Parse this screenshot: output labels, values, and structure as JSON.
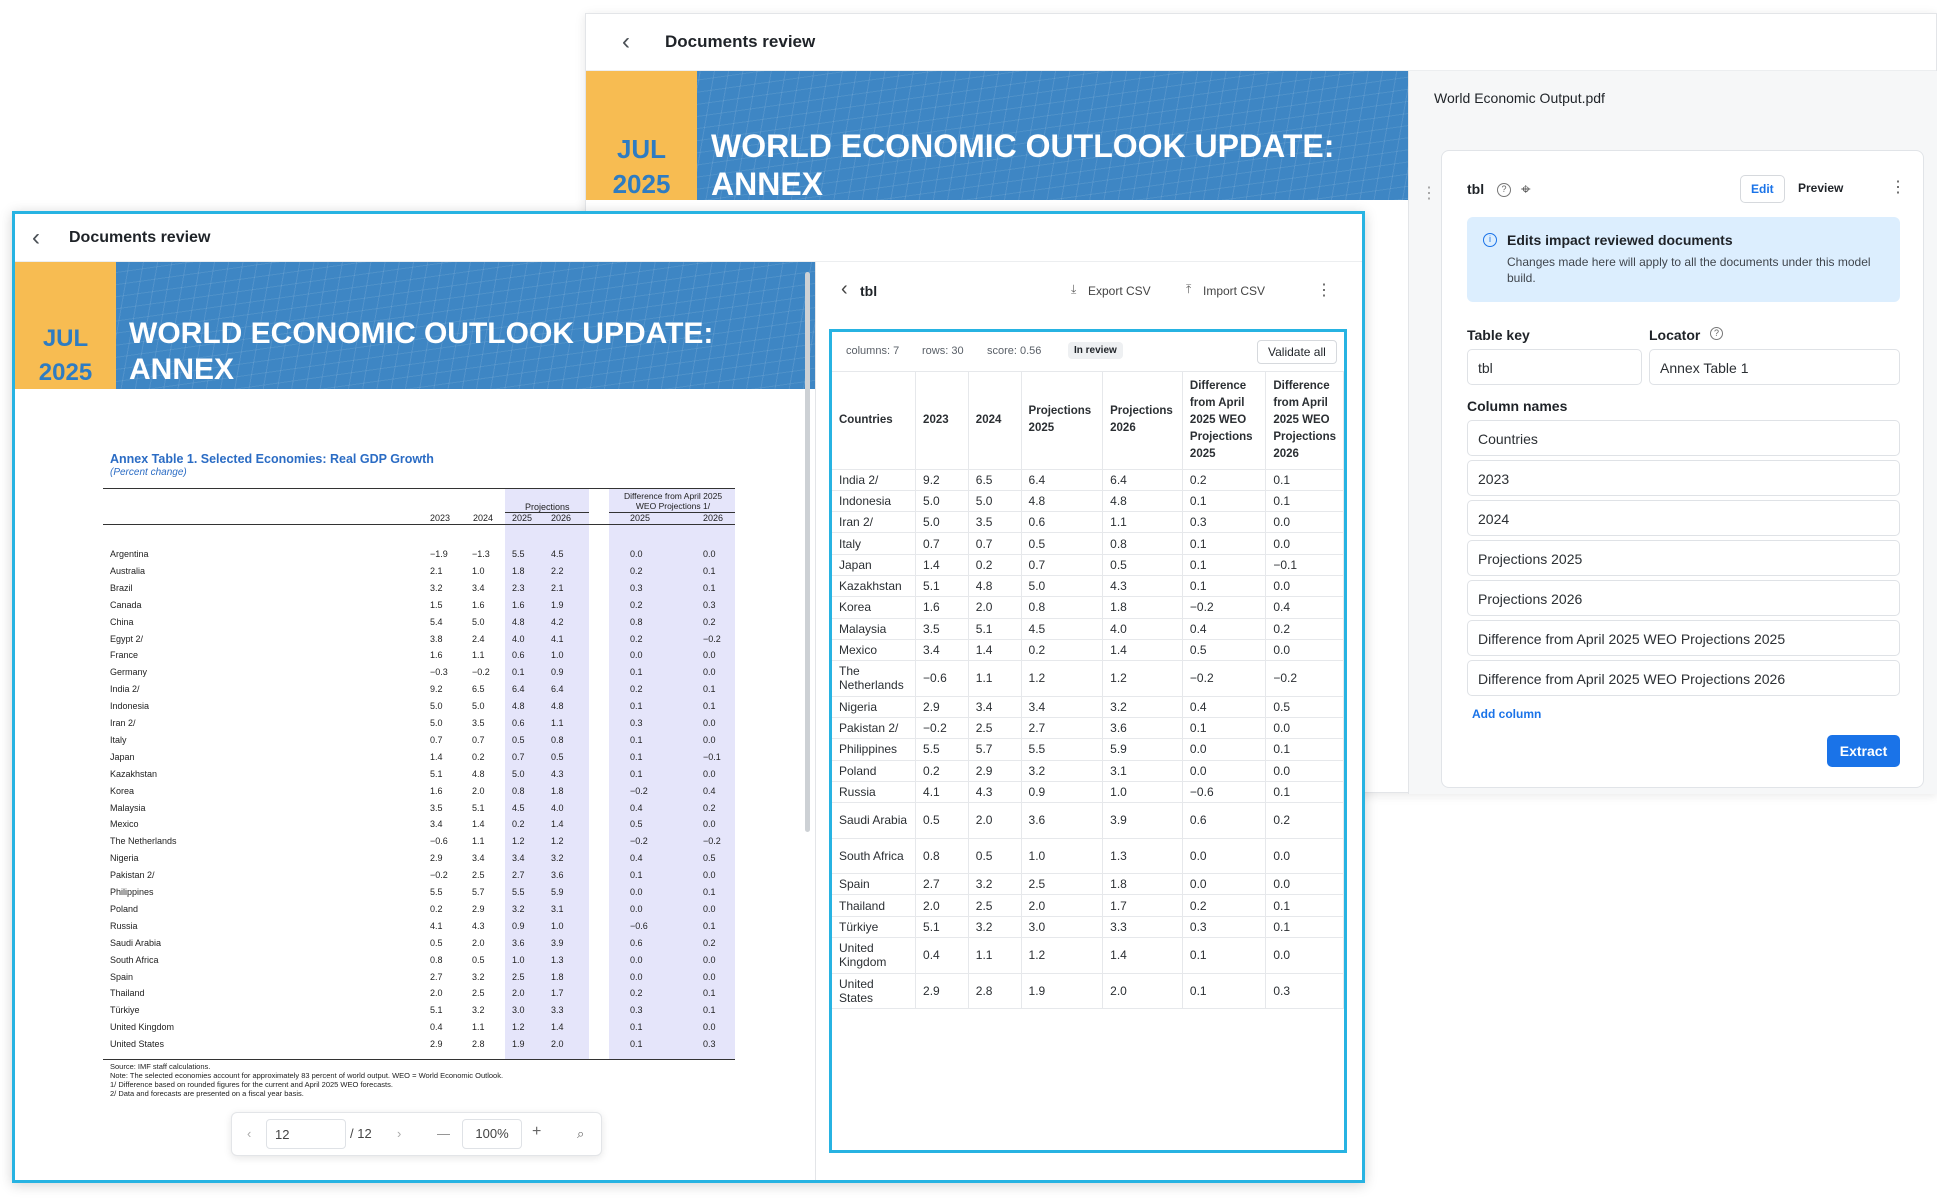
{
  "back_window": {
    "header_title": "Documents review",
    "banner": {
      "month": "JUL",
      "year": "2025",
      "title_line1": "WORLD ECONOMIC OUTLOOK UPDATE:",
      "title_line2": "ANNEX"
    },
    "panel": {
      "file_name": "World Economic Output.pdf",
      "table_name": "tbl",
      "tabs": [
        "Edit",
        "Preview"
      ],
      "notice_title": "Edits impact reviewed documents",
      "notice_text": "Changes made here will apply to all the documents under this model build.",
      "table_key_label": "Table key",
      "table_key_value": "tbl",
      "locator_label": "Locator",
      "locator_value": "Annex Table 1",
      "column_names_label": "Column names",
      "column_names": [
        "Countries",
        "2023",
        "2024",
        "Projections 2025",
        "Projections 2026",
        "Difference from April 2025 WEO Projections 2025",
        "Difference from April 2025 WEO Projections 2026"
      ],
      "add_column": "Add column",
      "extract_button": "Extract"
    }
  },
  "front_window": {
    "header_title": "Documents review",
    "banner": {
      "month": "JUL",
      "year": "2025",
      "title_line1": "WORLD ECONOMIC OUTLOOK UPDATE:",
      "title_line2": "ANNEX"
    },
    "pdf": {
      "table_title": "Annex Table 1. Selected Economies: Real GDP Growth",
      "table_subtitle": "(Percent change)",
      "group_projections": "Projections",
      "group_difference": "Difference from April 2025 WEO Projections 1/",
      "col_headers": [
        "2023",
        "2024",
        "2025",
        "2026",
        "2025",
        "2026"
      ],
      "rows": [
        [
          "Argentina",
          "−1.9",
          "−1.3",
          "5.5",
          "4.5",
          "0.0",
          "0.0"
        ],
        [
          "Australia",
          "2.1",
          "1.0",
          "1.8",
          "2.2",
          "0.2",
          "0.1"
        ],
        [
          "Brazil",
          "3.2",
          "3.4",
          "2.3",
          "2.1",
          "0.3",
          "0.1"
        ],
        [
          "Canada",
          "1.5",
          "1.6",
          "1.6",
          "1.9",
          "0.2",
          "0.3"
        ],
        [
          "China",
          "5.4",
          "5.0",
          "4.8",
          "4.2",
          "0.8",
          "0.2"
        ],
        [
          "Egypt 2/",
          "3.8",
          "2.4",
          "4.0",
          "4.1",
          "0.2",
          "−0.2"
        ],
        [
          "France",
          "1.6",
          "1.1",
          "0.6",
          "1.0",
          "0.0",
          "0.0"
        ],
        [
          "Germany",
          "−0.3",
          "−0.2",
          "0.1",
          "0.9",
          "0.1",
          "0.0"
        ],
        [
          "India 2/",
          "9.2",
          "6.5",
          "6.4",
          "6.4",
          "0.2",
          "0.1"
        ],
        [
          "Indonesia",
          "5.0",
          "5.0",
          "4.8",
          "4.8",
          "0.1",
          "0.1"
        ],
        [
          "Iran 2/",
          "5.0",
          "3.5",
          "0.6",
          "1.1",
          "0.3",
          "0.0"
        ],
        [
          "Italy",
          "0.7",
          "0.7",
          "0.5",
          "0.8",
          "0.1",
          "0.0"
        ],
        [
          "Japan",
          "1.4",
          "0.2",
          "0.7",
          "0.5",
          "0.1",
          "−0.1"
        ],
        [
          "Kazakhstan",
          "5.1",
          "4.8",
          "5.0",
          "4.3",
          "0.1",
          "0.0"
        ],
        [
          "Korea",
          "1.6",
          "2.0",
          "0.8",
          "1.8",
          "−0.2",
          "0.4"
        ],
        [
          "Malaysia",
          "3.5",
          "5.1",
          "4.5",
          "4.0",
          "0.4",
          "0.2"
        ],
        [
          "Mexico",
          "3.4",
          "1.4",
          "0.2",
          "1.4",
          "0.5",
          "0.0"
        ],
        [
          "The Netherlands",
          "−0.6",
          "1.1",
          "1.2",
          "1.2",
          "−0.2",
          "−0.2"
        ],
        [
          "Nigeria",
          "2.9",
          "3.4",
          "3.4",
          "3.2",
          "0.4",
          "0.5"
        ],
        [
          "Pakistan 2/",
          "−0.2",
          "2.5",
          "2.7",
          "3.6",
          "0.1",
          "0.0"
        ],
        [
          "Philippines",
          "5.5",
          "5.7",
          "5.5",
          "5.9",
          "0.0",
          "0.1"
        ],
        [
          "Poland",
          "0.2",
          "2.9",
          "3.2",
          "3.1",
          "0.0",
          "0.0"
        ],
        [
          "Russia",
          "4.1",
          "4.3",
          "0.9",
          "1.0",
          "−0.6",
          "0.1"
        ],
        [
          "Saudi Arabia",
          "0.5",
          "2.0",
          "3.6",
          "3.9",
          "0.6",
          "0.2"
        ],
        [
          "South Africa",
          "0.8",
          "0.5",
          "1.0",
          "1.3",
          "0.0",
          "0.0"
        ],
        [
          "Spain",
          "2.7",
          "3.2",
          "2.5",
          "1.8",
          "0.0",
          "0.0"
        ],
        [
          "Thailand",
          "2.0",
          "2.5",
          "2.0",
          "1.7",
          "0.2",
          "0.1"
        ],
        [
          "Türkiye",
          "5.1",
          "3.2",
          "3.0",
          "3.3",
          "0.3",
          "0.1"
        ],
        [
          "United Kingdom",
          "0.4",
          "1.1",
          "1.2",
          "1.4",
          "0.1",
          "0.0"
        ],
        [
          "United States",
          "2.9",
          "2.8",
          "1.9",
          "2.0",
          "0.1",
          "0.3"
        ]
      ],
      "notes": [
        "Source: IMF staff calculations.",
        "Note: The selected economies account for approximately 83 percent of world output. WEO = World Economic Outlook.",
        "1/ Difference based on rounded figures for the current and April 2025 WEO forecasts.",
        "2/ Data and forecasts are presented on a fiscal year basis."
      ],
      "pager": {
        "page": "12",
        "total": "/ 12",
        "zoom": "100%"
      }
    },
    "extraction": {
      "table_name": "tbl",
      "export_csv": "Export CSV",
      "import_csv": "Import CSV",
      "meta_columns": "columns: 7",
      "meta_rows": "rows: 30",
      "meta_score": "score: 0.56",
      "status_badge": "In review",
      "validate_all": "Validate all",
      "headers": [
        "Countries",
        "2023",
        "2024",
        "Projections 2025",
        "Projections 2026",
        "Difference from April 2025 WEO Projections 2025",
        "Difference from April 2025 WEO Projections 2026"
      ],
      "rows": [
        [
          "India 2/",
          "9.2",
          "6.5",
          "6.4",
          "6.4",
          "0.2",
          "0.1"
        ],
        [
          "Indonesia",
          "5.0",
          "5.0",
          "4.8",
          "4.8",
          "0.1",
          "0.1"
        ],
        [
          "Iran 2/",
          "5.0",
          "3.5",
          "0.6",
          "1.1",
          "0.3",
          "0.0"
        ],
        [
          "Italy",
          "0.7",
          "0.7",
          "0.5",
          "0.8",
          "0.1",
          "0.0"
        ],
        [
          "Japan",
          "1.4",
          "0.2",
          "0.7",
          "0.5",
          "0.1",
          "−0.1"
        ],
        [
          "Kazakhstan",
          "5.1",
          "4.8",
          "5.0",
          "4.3",
          "0.1",
          "0.0"
        ],
        [
          "Korea",
          "1.6",
          "2.0",
          "0.8",
          "1.8",
          "−0.2",
          "0.4"
        ],
        [
          "Malaysia",
          "3.5",
          "5.1",
          "4.5",
          "4.0",
          "0.4",
          "0.2"
        ],
        [
          "Mexico",
          "3.4",
          "1.4",
          "0.2",
          "1.4",
          "0.5",
          "0.0"
        ],
        [
          "The Netherlands",
          "−0.6",
          "1.1",
          "1.2",
          "1.2",
          "−0.2",
          "−0.2"
        ],
        [
          "Nigeria",
          "2.9",
          "3.4",
          "3.4",
          "3.2",
          "0.4",
          "0.5"
        ],
        [
          "Pakistan 2/",
          "−0.2",
          "2.5",
          "2.7",
          "3.6",
          "0.1",
          "0.0"
        ],
        [
          "Philippines",
          "5.5",
          "5.7",
          "5.5",
          "5.9",
          "0.0",
          "0.1"
        ],
        [
          "Poland",
          "0.2",
          "2.9",
          "3.2",
          "3.1",
          "0.0",
          "0.0"
        ],
        [
          "Russia",
          "4.1",
          "4.3",
          "0.9",
          "1.0",
          "−0.6",
          "0.1"
        ],
        [
          "Saudi Arabia",
          "0.5",
          "2.0",
          "3.6",
          "3.9",
          "0.6",
          "0.2"
        ],
        [
          "South Africa",
          "0.8",
          "0.5",
          "1.0",
          "1.3",
          "0.0",
          "0.0"
        ],
        [
          "Spain",
          "2.7",
          "3.2",
          "2.5",
          "1.8",
          "0.0",
          "0.0"
        ],
        [
          "Thailand",
          "2.0",
          "2.5",
          "2.0",
          "1.7",
          "0.2",
          "0.1"
        ],
        [
          "Türkiye",
          "5.1",
          "3.2",
          "3.0",
          "3.3",
          "0.3",
          "0.1"
        ],
        [
          "United Kingdom",
          "0.4",
          "1.1",
          "1.2",
          "1.4",
          "0.1",
          "0.0"
        ],
        [
          "United States",
          "2.9",
          "2.8",
          "1.9",
          "2.0",
          "0.1",
          "0.3"
        ]
      ]
    }
  },
  "colors": {
    "accent": "#1a73e8",
    "highlight": "#27b3e2",
    "banner_blue": "#3e86c4",
    "banner_yellow": "#f7bc52",
    "notice_bg": "#dceefe"
  }
}
